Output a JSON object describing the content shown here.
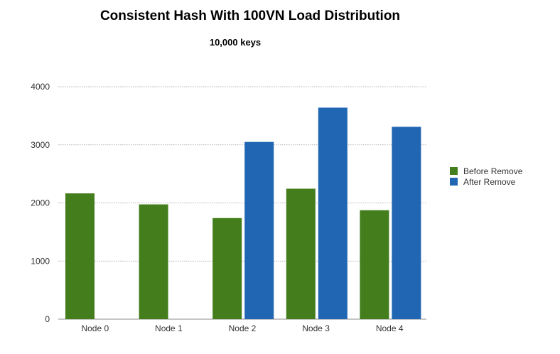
{
  "chart_data": {
    "type": "bar",
    "title": "Consistent Hash With 100VN Load Distribution",
    "subtitle": "10,000 keys",
    "xlabel": "",
    "ylabel": "",
    "categories": [
      "Node 0",
      "Node 1",
      "Node 2",
      "Node 3",
      "Node 4"
    ],
    "series": [
      {
        "name": "Before Remove",
        "color": "#437d1c",
        "values": [
          2165,
          1975,
          1740,
          2245,
          1875
        ]
      },
      {
        "name": "After Remove",
        "color": "#2066b3",
        "values": [
          null,
          null,
          3050,
          3640,
          3310
        ]
      }
    ],
    "ylim": [
      0,
      4000
    ],
    "yticks": [
      0,
      1000,
      2000,
      3000,
      4000
    ],
    "grid": true,
    "legend_position": "right"
  }
}
